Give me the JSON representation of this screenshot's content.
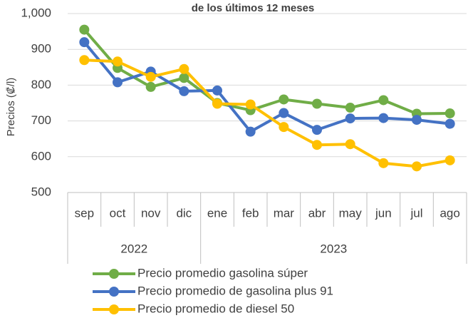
{
  "chart_data": {
    "type": "line",
    "title": "de los últimos  12 meses",
    "y_label": "Precios (₡/l)",
    "category_groups": [
      {
        "name": "2022",
        "categories": [
          "sep",
          "oct",
          "nov",
          "dic"
        ]
      },
      {
        "name": "2023",
        "categories": [
          "ene",
          "feb",
          "mar",
          "abr",
          "may",
          "jun",
          "jul",
          "ago"
        ]
      }
    ],
    "series": [
      {
        "name": "Precio promedio gasolina súper",
        "color": "#70ad47",
        "values": [
          955,
          848,
          795,
          820,
          750,
          730,
          760,
          748,
          737,
          758,
          720,
          721
        ]
      },
      {
        "name": "Precio promedio de gasolina plus 91",
        "color": "#4472c4",
        "values": [
          920,
          808,
          838,
          783,
          785,
          670,
          722,
          675,
          707,
          708,
          703,
          692
        ]
      },
      {
        "name": "Precio promedio de diesel 50",
        "color": "#ffc000",
        "values": [
          870,
          866,
          823,
          845,
          748,
          746,
          683,
          633,
          635,
          582,
          573,
          590
        ]
      }
    ],
    "ylim": [
      500,
      1000
    ],
    "yticks": [
      500,
      600,
      700,
      800,
      900,
      {
        "value": 1000,
        "label": "1,000"
      }
    ],
    "grid": true
  }
}
